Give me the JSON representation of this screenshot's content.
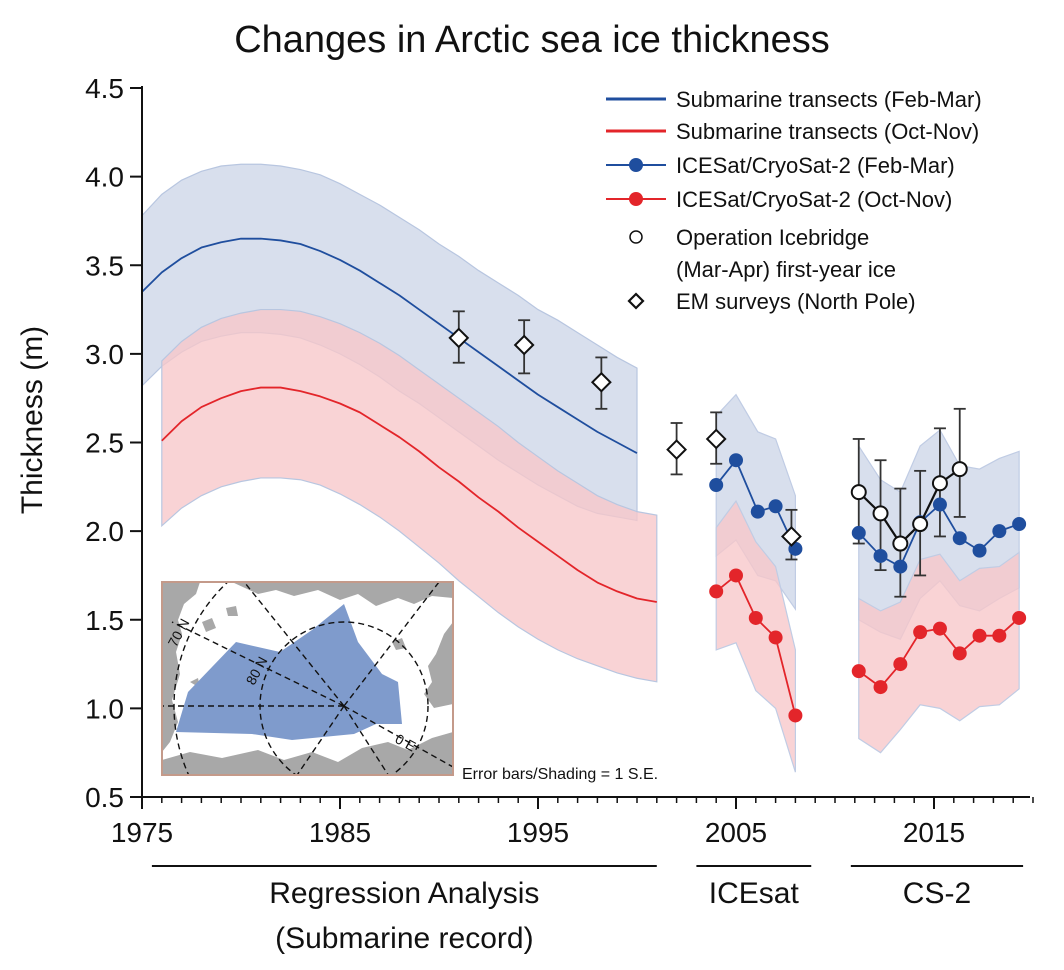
{
  "chart_data": {
    "type": "line",
    "title": "Changes in Arctic sea ice thickness",
    "ylabel": "Thickness (m)",
    "xlabel": "",
    "ylim": [
      0.5,
      4.5
    ],
    "xlim": [
      1975,
      2021
    ],
    "yticks": [
      "0.5",
      "1.0",
      "1.5",
      "2.0",
      "2.5",
      "3.0",
      "3.5",
      "4.0",
      "4.5"
    ],
    "xticks": [
      {
        "value": 1975,
        "label": "1975"
      },
      {
        "value": 1985,
        "label": "1985"
      },
      {
        "value": 1995,
        "label": "1995"
      },
      {
        "value": 2005,
        "label": "2005"
      },
      {
        "value": 2015,
        "label": "2015"
      }
    ],
    "period_labels": [
      {
        "label": "Regression Analysis",
        "sub": "(Submarine record)",
        "x_start": 1975.5,
        "x_end": 2001
      },
      {
        "label": "ICEsat",
        "sub": "",
        "x_start": 2003,
        "x_end": 2008.8
      },
      {
        "label": "CS-2",
        "sub": "",
        "x_start": 2010.8,
        "x_end": 2019.5
      }
    ],
    "annotation": "Error bars/Shading = 1 S.E.",
    "colors": {
      "blue": "#1f4e9e",
      "red": "#e3252a",
      "blue_shade": "#cdd6e8",
      "red_shade": "#f7c6c9",
      "overlap_shade": "#dcb8c2",
      "errbar": "#333333",
      "map_ocean": "#ffffff",
      "map_land": "#a8a8a8",
      "map_region": "#7f9bcc",
      "map_border": "#c49a8a"
    },
    "series": [
      {
        "name": "Submarine transects (Feb-Mar)",
        "style": "line",
        "color": "blue",
        "x": [
          1975,
          1976,
          1977,
          1978,
          1979,
          1980,
          1981,
          1982,
          1983,
          1984,
          1985,
          1986,
          1987,
          1988,
          1989,
          1990,
          1991,
          1992,
          1993,
          1994,
          1995,
          1996,
          1997,
          1998,
          1999,
          2000
        ],
        "y": [
          3.35,
          3.46,
          3.54,
          3.6,
          3.63,
          3.65,
          3.65,
          3.64,
          3.62,
          3.58,
          3.53,
          3.47,
          3.4,
          3.33,
          3.25,
          3.17,
          3.09,
          3.01,
          2.93,
          2.85,
          2.77,
          2.7,
          2.63,
          2.56,
          2.5,
          2.44
        ],
        "lower": [
          2.82,
          2.93,
          3.01,
          3.07,
          3.1,
          3.12,
          3.12,
          3.11,
          3.09,
          3.05,
          3.0,
          2.94,
          2.87,
          2.79,
          2.72,
          2.64,
          2.56,
          2.48,
          2.4,
          2.33,
          2.26,
          2.2,
          2.14,
          2.1,
          2.08,
          2.06
        ],
        "upper": [
          3.78,
          3.9,
          3.98,
          4.03,
          4.06,
          4.07,
          4.07,
          4.06,
          4.04,
          4.01,
          3.96,
          3.9,
          3.84,
          3.77,
          3.7,
          3.62,
          3.55,
          3.47,
          3.4,
          3.33,
          3.25,
          3.19,
          3.12,
          3.05,
          2.98,
          2.92
        ]
      },
      {
        "name": "Submarine transects (Oct-Nov)",
        "style": "line",
        "color": "red",
        "x": [
          1976,
          1977,
          1978,
          1979,
          1980,
          1981,
          1982,
          1983,
          1984,
          1985,
          1986,
          1987,
          1988,
          1989,
          1990,
          1991,
          1992,
          1993,
          1994,
          1995,
          1996,
          1997,
          1998,
          1999,
          2000,
          2001
        ],
        "y": [
          2.51,
          2.62,
          2.7,
          2.75,
          2.79,
          2.81,
          2.81,
          2.79,
          2.76,
          2.72,
          2.67,
          2.6,
          2.53,
          2.45,
          2.36,
          2.28,
          2.19,
          2.11,
          2.02,
          1.94,
          1.86,
          1.78,
          1.71,
          1.66,
          1.62,
          1.6
        ],
        "lower": [
          2.03,
          2.13,
          2.2,
          2.25,
          2.28,
          2.3,
          2.3,
          2.29,
          2.26,
          2.21,
          2.15,
          2.08,
          2.0,
          1.91,
          1.82,
          1.72,
          1.63,
          1.54,
          1.46,
          1.39,
          1.33,
          1.28,
          1.24,
          1.2,
          1.17,
          1.15
        ],
        "upper": [
          2.96,
          3.07,
          3.15,
          3.2,
          3.23,
          3.25,
          3.25,
          3.24,
          3.21,
          3.17,
          3.12,
          3.06,
          2.99,
          2.91,
          2.83,
          2.75,
          2.67,
          2.59,
          2.5,
          2.42,
          2.34,
          2.27,
          2.2,
          2.15,
          2.11,
          2.09
        ]
      },
      {
        "name": "ICESat/CryoSat-2 (Feb-Mar)",
        "style": "line-markers",
        "color": "blue",
        "segments": [
          {
            "x": [
              2004.0,
              2005.0,
              2006.1,
              2007.0,
              2008.0
            ],
            "y": [
              2.26,
              2.4,
              2.11,
              2.14,
              1.9
            ],
            "lower": [
              1.86,
              1.95,
              1.75,
              1.72,
              1.56
            ],
            "upper": [
              2.65,
              2.77,
              2.56,
              2.52,
              2.2
            ]
          },
          {
            "x": [
              2011.2,
              2012.3,
              2013.3,
              2014.3,
              2015.3,
              2016.3,
              2017.3,
              2018.3,
              2019.3
            ],
            "y": [
              1.99,
              1.86,
              1.8,
              2.05,
              2.15,
              1.96,
              1.89,
              2.0,
              2.04
            ],
            "lower": [
              1.5,
              1.43,
              1.39,
              1.62,
              1.72,
              1.58,
              1.55,
              1.62,
              1.68
            ],
            "upper": [
              2.48,
              2.29,
              2.22,
              2.48,
              2.57,
              2.37,
              2.35,
              2.41,
              2.45
            ]
          }
        ]
      },
      {
        "name": "ICESat/CryoSat-2 (Oct-Nov)",
        "style": "line-markers",
        "color": "red",
        "segments": [
          {
            "x": [
              2004.0,
              2005.0,
              2006.0,
              2007.0,
              2008.0
            ],
            "y": [
              1.66,
              1.75,
              1.51,
              1.4,
              0.96
            ],
            "lower": [
              1.33,
              1.37,
              1.1,
              1.0,
              0.64
            ],
            "upper": [
              2.02,
              2.17,
              1.94,
              1.8,
              1.33
            ]
          },
          {
            "x": [
              2011.2,
              2012.3,
              2013.3,
              2014.3,
              2015.3,
              2016.3,
              2017.3,
              2018.3,
              2019.3
            ],
            "y": [
              1.21,
              1.12,
              1.25,
              1.43,
              1.45,
              1.31,
              1.41,
              1.41,
              1.51
            ],
            "lower": [
              0.83,
              0.75,
              0.88,
              1.02,
              1.0,
              0.93,
              1.01,
              1.02,
              1.11
            ],
            "upper": [
              1.62,
              1.55,
              1.6,
              1.84,
              1.87,
              1.72,
              1.79,
              1.8,
              1.88
            ]
          }
        ]
      },
      {
        "name": "Operation Icebridge",
        "name2": "(Mar-Apr) first-year ice",
        "style": "open-circles-errorbars",
        "color": "black",
        "x": [
          2011.2,
          2012.3,
          2013.3,
          2014.3,
          2015.3,
          2016.3
        ],
        "y": [
          2.22,
          2.1,
          1.93,
          2.04,
          2.27,
          2.35
        ],
        "err_low": [
          1.93,
          1.78,
          1.63,
          1.75,
          1.97,
          2.08
        ],
        "err_high": [
          2.52,
          2.4,
          2.24,
          2.34,
          2.58,
          2.69
        ]
      },
      {
        "name": "EM surveys (North Pole)",
        "style": "diamonds-errorbars",
        "color": "black",
        "x": [
          1991.0,
          1994.3,
          1998.2,
          2002.0,
          2004.0,
          2007.8
        ],
        "y": [
          3.09,
          3.05,
          2.84,
          2.46,
          2.52,
          1.97
        ],
        "err_low": [
          2.95,
          2.89,
          2.69,
          2.32,
          2.38,
          1.84
        ],
        "err_high": [
          3.24,
          3.19,
          2.98,
          2.61,
          2.67,
          2.12
        ]
      }
    ],
    "inset_map": {
      "labels": [
        "70 N",
        "80 N",
        "0 E"
      ]
    }
  }
}
